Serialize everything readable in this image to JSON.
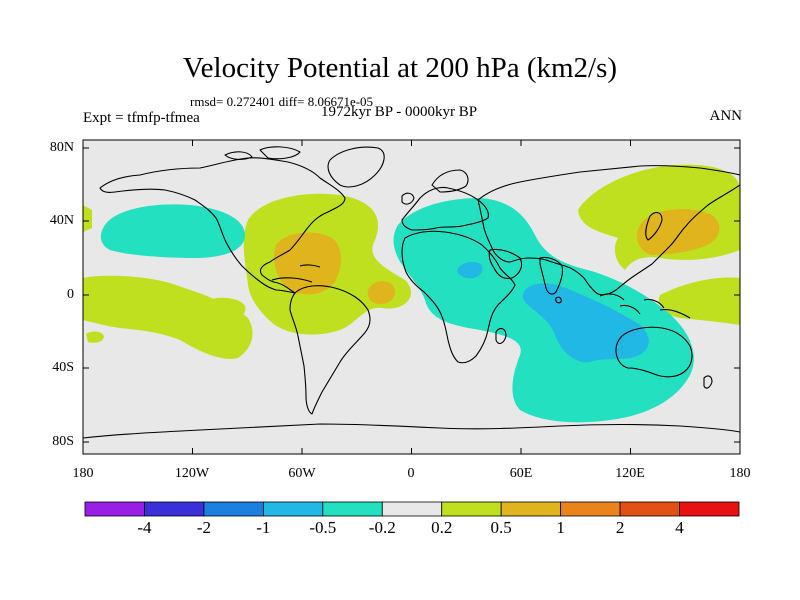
{
  "title": "Velocity Potential at 200 hPa (km2/s)",
  "stats": "rmsd= 0.272401 diff= 8.06671e-05",
  "experiment": "Expt = tfmfp-tfmea",
  "period": "1972kyr BP - 0000kyr BP",
  "season": "ANN",
  "axes": {
    "y_ticks": [
      "80N",
      "40N",
      "0",
      "40S",
      "80S"
    ],
    "x_ticks": [
      "180",
      "120W",
      "60W",
      "0",
      "60E",
      "120E",
      "180"
    ]
  },
  "colorbar": {
    "colors": [
      "#9a1fe6",
      "#3a2fd9",
      "#1d7fe0",
      "#22b8e6",
      "#22e0c0",
      "#e8e8e8",
      "#bfe01f",
      "#e0b41c",
      "#e8841a",
      "#e35013",
      "#e81010"
    ],
    "labels": [
      "-4",
      "-2",
      "-1",
      "-0.5",
      "-0.2",
      "0.2",
      "0.5",
      "1",
      "2",
      "4"
    ]
  },
  "field_colors": {
    "background": "#e8e8e8",
    "pos_weak": "#bfe01f",
    "pos_mid": "#e0b41c",
    "neg_weak": "#22e0c0",
    "neg_mid": "#22b8e6"
  }
}
